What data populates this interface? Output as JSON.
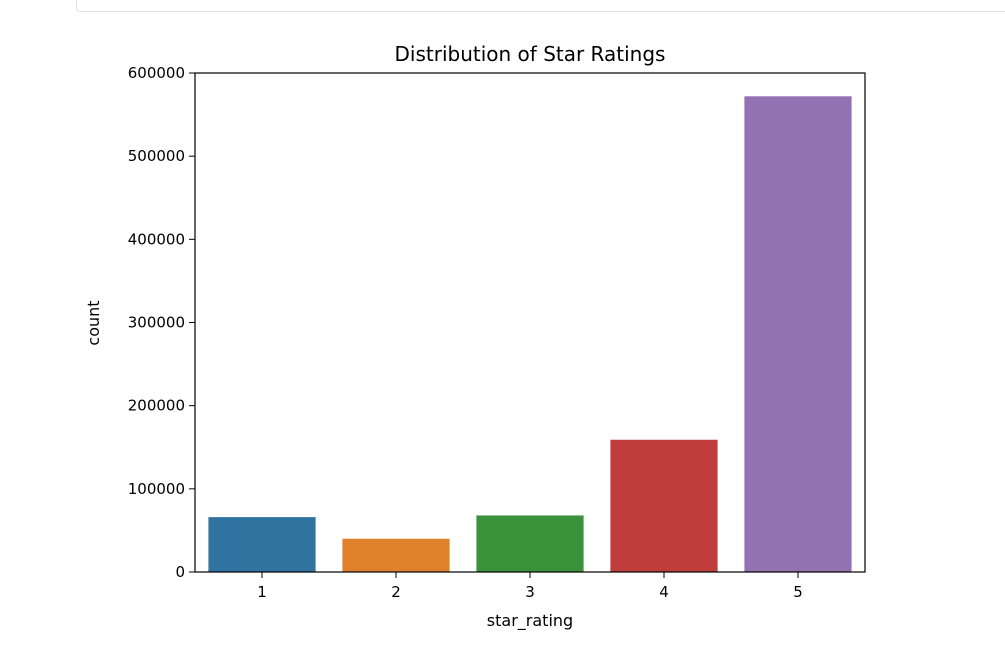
{
  "chart_data": {
    "type": "bar",
    "title": "Distribution of Star Ratings",
    "xlabel": "star_rating",
    "ylabel": "count",
    "categories": [
      "1",
      "2",
      "3",
      "4",
      "5"
    ],
    "values": [
      66000,
      40000,
      68000,
      159000,
      572000
    ],
    "colors": [
      "#3274a1",
      "#e1812c",
      "#3a923a",
      "#c03d3e",
      "#9372b2"
    ],
    "ylim": [
      0,
      600000
    ],
    "yticks": [
      0,
      100000,
      200000,
      300000,
      400000,
      500000,
      600000
    ],
    "ytick_labels": [
      "0",
      "100000",
      "200000",
      "300000",
      "400000",
      "500000",
      "600000"
    ],
    "grid": false,
    "legend": "none"
  }
}
